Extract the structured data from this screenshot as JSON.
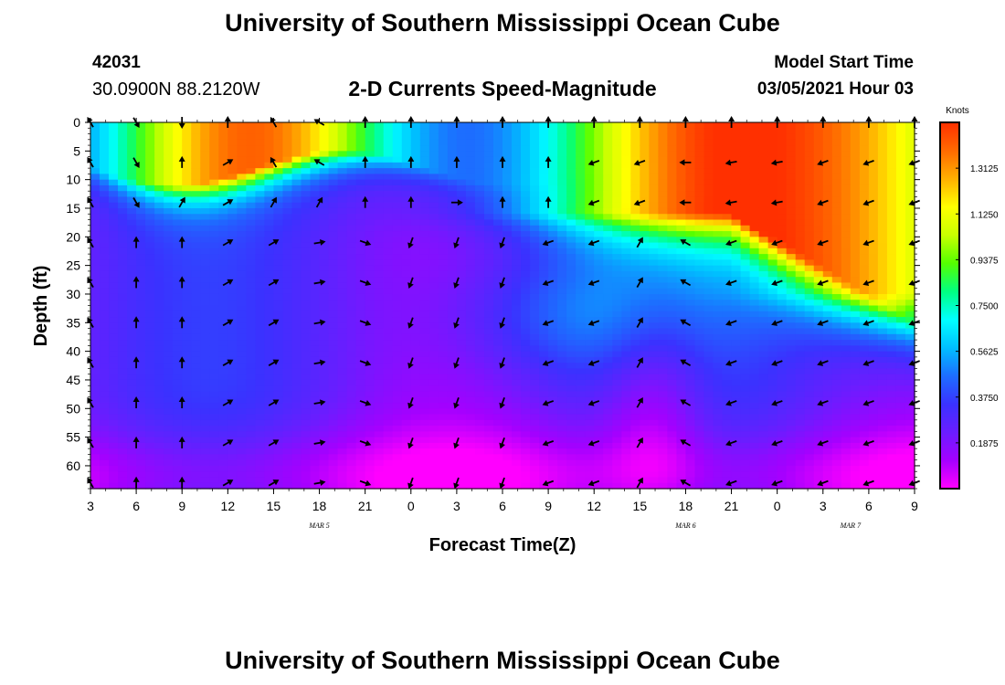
{
  "header": {
    "title": "University of Southern Mississippi Ocean Cube",
    "station_id": "42031",
    "location": "30.0900N 88.2120W",
    "subtitle": "2-D Currents Speed-Magnitude",
    "model_start_label": "Model Start Time",
    "model_start_value": "03/05/2021 Hour 03"
  },
  "footer": {
    "title": "University of Southern Mississippi Ocean Cube"
  },
  "colors": {
    "colormap": [
      "#ff00ff",
      "#a500ff",
      "#6a1dff",
      "#3a32ff",
      "#1d6dff",
      "#00bfff",
      "#00ffff",
      "#00ff80",
      "#55ff00",
      "#c8ff00",
      "#ffff00",
      "#ffb000",
      "#ff6a00",
      "#ff3000"
    ]
  },
  "chart_data": {
    "type": "heatmap",
    "xlabel": "Forecast Time(Z)",
    "ylabel": "Depth (ft)",
    "x_tick_labels": [
      "3",
      "6",
      "9",
      "12",
      "15",
      "18",
      "21",
      "0",
      "3",
      "6",
      "9",
      "12",
      "15",
      "18",
      "21",
      "0",
      "3",
      "6",
      "9"
    ],
    "x_date_labels": [
      {
        "label": "MAR 5",
        "hour_index": 5
      },
      {
        "label": "MAR 6",
        "hour_index": 13
      },
      {
        "label": "MAR 7",
        "hour_index": 16.6
      }
    ],
    "y_ticks": [
      0,
      5,
      10,
      15,
      20,
      25,
      30,
      35,
      40,
      45,
      50,
      55,
      60
    ],
    "ylim": [
      0,
      64
    ],
    "xlim_hours": [
      0,
      54
    ],
    "colorbar": {
      "title": "Knots",
      "tick_labels": [
        "1.3125",
        "1.1250",
        "0.9375",
        "0.7500",
        "0.5625",
        "0.3750",
        "0.1875"
      ],
      "tick_values": [
        1.3125,
        1.125,
        0.9375,
        0.75,
        0.5625,
        0.375,
        0.1875
      ],
      "range": [
        0,
        1.5
      ]
    },
    "arrow_times_hours": [
      0,
      3,
      6,
      9,
      12,
      15,
      18,
      21,
      24,
      27,
      30,
      33,
      36,
      39,
      42,
      45,
      48,
      51,
      54
    ],
    "arrow_depths_ft": [
      0,
      7,
      14,
      21,
      28,
      35,
      42,
      49,
      56,
      63
    ],
    "arrow_directions_deg": [
      [
        330,
        330,
        330,
        330,
        330,
        330,
        330,
        330,
        330,
        330
      ],
      [
        150,
        150,
        150,
        0,
        0,
        0,
        0,
        0,
        0,
        0
      ],
      [
        180,
        0,
        30,
        0,
        0,
        0,
        0,
        0,
        0,
        0
      ],
      [
        0,
        60,
        60,
        60,
        60,
        60,
        60,
        60,
        60,
        60
      ],
      [
        330,
        330,
        30,
        60,
        60,
        60,
        60,
        60,
        60,
        60
      ],
      [
        300,
        300,
        30,
        80,
        80,
        80,
        80,
        80,
        80,
        80
      ],
      [
        0,
        0,
        0,
        110,
        110,
        110,
        110,
        110,
        110,
        110
      ],
      [
        0,
        0,
        0,
        200,
        200,
        200,
        200,
        200,
        200,
        200
      ],
      [
        0,
        0,
        90,
        200,
        200,
        200,
        200,
        200,
        200,
        200
      ],
      [
        0,
        0,
        0,
        200,
        200,
        200,
        200,
        200,
        200,
        200
      ],
      [
        0,
        0,
        0,
        250,
        250,
        250,
        250,
        250,
        250,
        250
      ],
      [
        0,
        250,
        250,
        250,
        250,
        250,
        250,
        250,
        250,
        250
      ],
      [
        0,
        250,
        250,
        30,
        30,
        30,
        30,
        30,
        30,
        30
      ],
      [
        0,
        270,
        270,
        300,
        300,
        300,
        300,
        300,
        300,
        300
      ],
      [
        0,
        260,
        260,
        250,
        250,
        250,
        250,
        250,
        250,
        250
      ],
      [
        0,
        260,
        260,
        250,
        250,
        250,
        250,
        250,
        250,
        250
      ],
      [
        0,
        250,
        250,
        250,
        250,
        250,
        250,
        250,
        250,
        250
      ],
      [
        0,
        250,
        250,
        250,
        250,
        250,
        250,
        250,
        250,
        250
      ],
      [
        0,
        250,
        250,
        250,
        250,
        250,
        250,
        250,
        250,
        250
      ]
    ]
  }
}
